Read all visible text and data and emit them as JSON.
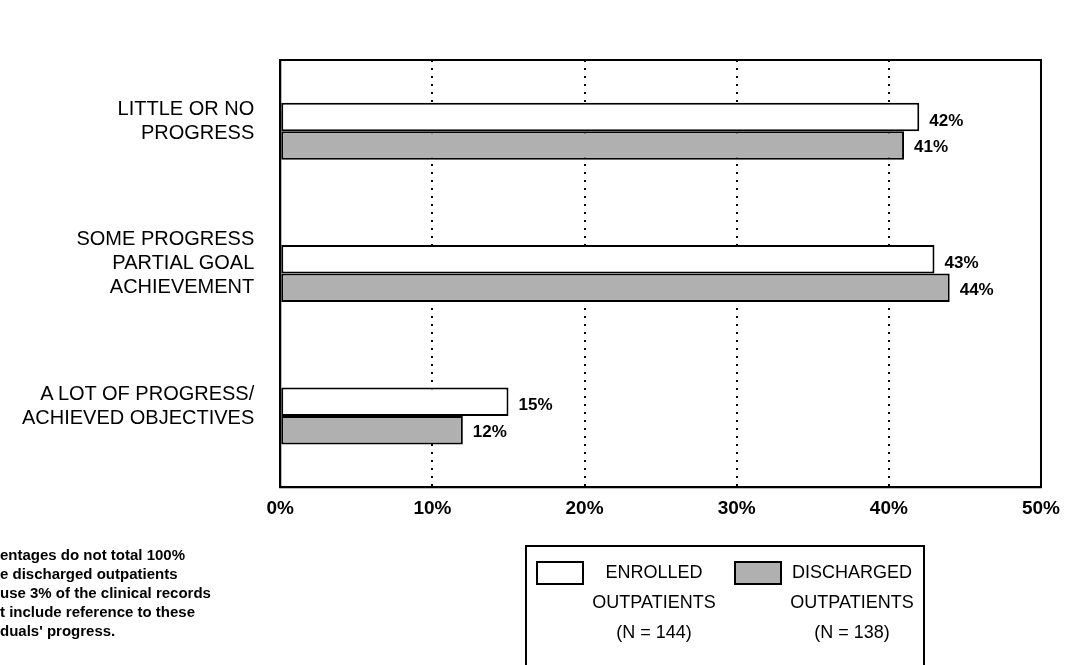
{
  "chart_data": {
    "type": "bar",
    "orientation": "horizontal",
    "categories": [
      "LITTLE OR NO\nPROGRESS",
      "SOME PROGRESS\nPARTIAL GOAL\nACHIEVEMENT",
      "A LOT OF PROGRESS/\nACHIEVED OBJECTIVES"
    ],
    "series": [
      {
        "name": "ENROLLED\nOUTPATIENTS\n(N = 144)",
        "color": "#ffffff",
        "values": [
          42,
          43,
          15
        ],
        "value_labels": [
          "42%",
          "43%",
          "15%"
        ]
      },
      {
        "name": "DISCHARGED\nOUTPATIENTS\n(N = 138)",
        "color": "#b0b0b0",
        "values": [
          41,
          44,
          12
        ],
        "value_labels": [
          "41%",
          "44%",
          "12%"
        ]
      }
    ],
    "xlim": [
      0,
      50
    ],
    "xticks": [
      {
        "value": 0,
        "label": "0%"
      },
      {
        "value": 10,
        "label": "10%"
      },
      {
        "value": 20,
        "label": "20%"
      },
      {
        "value": 30,
        "label": "30%"
      },
      {
        "value": 40,
        "label": "40%"
      },
      {
        "value": 50,
        "label": "50%"
      }
    ],
    "grid": "x",
    "legend": "bottom",
    "annotations": [
      "entages do not total 100%\ne discharged outpatients\nuse 3% of the clinical records\nt include reference to these\nduals' progress."
    ]
  }
}
